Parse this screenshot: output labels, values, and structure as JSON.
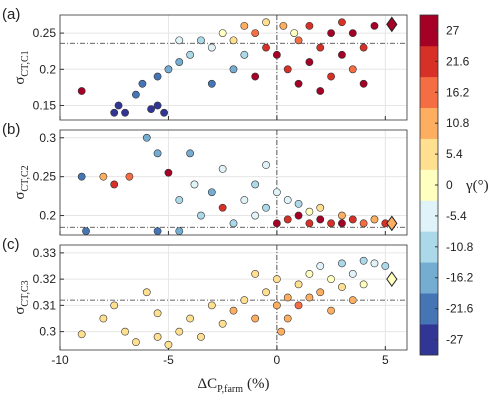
{
  "chart_data": [
    {
      "type": "scatter",
      "panel_label": "(a)",
      "ylabel": {
        "main": "σ",
        "sub": "CT,C1"
      },
      "x": [
        -9,
        -7.5,
        -7.3,
        -7,
        -6.5,
        -6.2,
        -5.8,
        -5.5,
        -5.2,
        -5.5,
        -5,
        -4.5,
        -4,
        -3.5,
        -3,
        -2.5,
        -2,
        -1.5,
        -1,
        -3,
        -2,
        -1,
        -0.5,
        0,
        0.3,
        0.5,
        1,
        1,
        1.5,
        1.5,
        2,
        2,
        2.5,
        2.5,
        3,
        3,
        3.5,
        3.5,
        4,
        4,
        4.5,
        -4.5,
        -0.5,
        0.8,
        -1.5
      ],
      "y": [
        0.17,
        0.14,
        0.15,
        0.14,
        0.165,
        0.18,
        0.145,
        0.15,
        0.14,
        0.19,
        0.2,
        0.21,
        0.22,
        0.24,
        0.23,
        0.25,
        0.24,
        0.26,
        0.25,
        0.18,
        0.2,
        0.19,
        0.23,
        0.22,
        0.26,
        0.2,
        0.18,
        0.24,
        0.26,
        0.21,
        0.17,
        0.23,
        0.25,
        0.19,
        0.22,
        0.265,
        0.2,
        0.25,
        0.23,
        0.18,
        0.26,
        0.24,
        0.265,
        0.25,
        0.22
      ],
      "gamma": [
        27,
        -27,
        -27,
        -27,
        -21.6,
        -21.6,
        -27,
        -27,
        -27,
        -21.6,
        -16.2,
        -16.2,
        -10.8,
        -10.8,
        -5.4,
        0,
        5.4,
        10.8,
        16.2,
        -21.6,
        -16.2,
        27,
        21.6,
        27,
        10.8,
        21.6,
        27,
        16.2,
        21.6,
        27,
        27,
        21.6,
        27,
        21.6,
        27,
        21.6,
        16.2,
        27,
        21.6,
        27,
        27,
        -5.4,
        5.4,
        0,
        -10.8
      ],
      "xlim": [
        -10,
        6
      ],
      "xticks": [
        -10,
        -5,
        0,
        5
      ],
      "ylim": [
        0.13,
        0.275
      ],
      "yticks": [
        0.15,
        0.2,
        0.25
      ],
      "hline": 0.236,
      "vline": 0,
      "ref": {
        "x": 5.3,
        "y": 0.262,
        "gamma": 27
      },
      "show_xticklabels": false,
      "grid": true
    },
    {
      "type": "scatter",
      "panel_label": "(b)",
      "ylabel": {
        "main": "σ",
        "sub": "CT,C2"
      },
      "x": [
        -9,
        -8.8,
        -8,
        -7.5,
        -6.8,
        -6,
        -5.5,
        -5.5,
        -5,
        -4.5,
        -4,
        -3.8,
        -3.5,
        -3,
        -2.5,
        -2.5,
        -2,
        -1.5,
        -1,
        -1,
        -0.5,
        -0.5,
        0,
        0,
        0.5,
        0.5,
        1,
        1,
        1.5,
        1.5,
        2,
        2,
        2.5,
        3,
        3,
        3.5,
        4,
        4.5,
        5,
        -4.5
      ],
      "y": [
        0.25,
        0.18,
        0.25,
        0.24,
        0.25,
        0.3,
        0.28,
        0.18,
        0.255,
        0.22,
        0.28,
        0.24,
        0.2,
        0.23,
        0.21,
        0.26,
        0.19,
        0.22,
        0.24,
        0.2,
        0.265,
        0.21,
        0.23,
        0.19,
        0.22,
        0.195,
        0.2,
        0.215,
        0.19,
        0.205,
        0.195,
        0.21,
        0.19,
        0.2,
        0.19,
        0.195,
        0.19,
        0.195,
        0.19,
        0.18
      ],
      "gamma": [
        -21.6,
        -21.6,
        10.8,
        21.6,
        16.2,
        -16.2,
        -16.2,
        -21.6,
        27,
        -10.8,
        -16.2,
        -5.4,
        -10.8,
        -16.2,
        21.6,
        -5.4,
        -10.8,
        -5.4,
        -10.8,
        -5.4,
        -5.4,
        -10.8,
        -5.4,
        27,
        -5.4,
        21.6,
        27,
        -10.8,
        21.6,
        0,
        27,
        5.4,
        21.6,
        10.8,
        27,
        21.6,
        16.2,
        10.8,
        21.6,
        -16.2
      ],
      "xlim": [
        -10,
        6
      ],
      "xticks": [
        -10,
        -5,
        0,
        5
      ],
      "ylim": [
        0.175,
        0.31
      ],
      "yticks": [
        0.2,
        0.25,
        0.3
      ],
      "hline": 0.185,
      "vline": 0,
      "ref": {
        "x": 5.3,
        "y": 0.19,
        "gamma": 10.8
      },
      "show_xticklabels": false,
      "grid": true
    },
    {
      "type": "scatter",
      "panel_label": "(c)",
      "ylabel": {
        "main": "σ",
        "sub": "CT,C3"
      },
      "xlabel": {
        "main": "ΔC",
        "sub": "P,farm",
        "rest": "(%)"
      },
      "x": [
        -9,
        -8,
        -7.5,
        -7,
        -6.5,
        -6,
        -5.5,
        -5.5,
        -5,
        -4.5,
        -4,
        -3.5,
        -3,
        -2.5,
        -2,
        -1.5,
        -1,
        -0.5,
        0,
        0,
        0.5,
        0.5,
        1,
        1,
        1.5,
        1.5,
        2,
        2,
        2.5,
        2.5,
        3,
        3,
        3.5,
        3.5,
        4,
        4,
        4.5,
        5,
        -1,
        0.2
      ],
      "y": [
        0.299,
        0.305,
        0.31,
        0.3,
        0.296,
        0.315,
        0.298,
        0.307,
        0.295,
        0.3,
        0.305,
        0.298,
        0.31,
        0.303,
        0.308,
        0.312,
        0.305,
        0.315,
        0.31,
        0.32,
        0.313,
        0.305,
        0.318,
        0.31,
        0.322,
        0.313,
        0.325,
        0.315,
        0.32,
        0.308,
        0.326,
        0.317,
        0.322,
        0.312,
        0.327,
        0.318,
        0.326,
        0.325,
        0.322,
        0.3
      ],
      "gamma": [
        5.4,
        5.4,
        5.4,
        5.4,
        5.4,
        5.4,
        5.4,
        5.4,
        5.4,
        5.4,
        5.4,
        5.4,
        5.4,
        5.4,
        10.8,
        5.4,
        10.8,
        5.4,
        10.8,
        5.4,
        10.8,
        10.8,
        5.4,
        16.2,
        0,
        10.8,
        -5.4,
        10.8,
        0,
        10.8,
        -10.8,
        5.4,
        -5.4,
        10.8,
        -10.8,
        0,
        -5.4,
        -10.8,
        5.4,
        10.8
      ],
      "xlim": [
        -10,
        6
      ],
      "xticks": [
        -10,
        -5,
        0,
        5
      ],
      "ylim": [
        0.293,
        0.333
      ],
      "yticks": [
        0.3,
        0.31,
        0.32,
        0.33
      ],
      "hline": 0.312,
      "vline": 0,
      "ref": {
        "x": 5.3,
        "y": 0.32,
        "gamma": 0
      },
      "show_xticklabels": true,
      "grid": true
    },
    {
      "type": "colorbar",
      "label": "γ(°)",
      "clim": [
        -29.7,
        29.7
      ],
      "ticks": [
        27,
        21.6,
        16.2,
        10.8,
        5.4,
        0,
        -5.4,
        -10.8,
        -16.2,
        -21.6,
        -27
      ],
      "colors": [
        "#313695",
        "#4575b4",
        "#74add1",
        "#abd9e9",
        "#e0f3f8",
        "#ffffbf",
        "#fee090",
        "#fdae61",
        "#f46d43",
        "#d73027",
        "#a50026"
      ]
    }
  ]
}
